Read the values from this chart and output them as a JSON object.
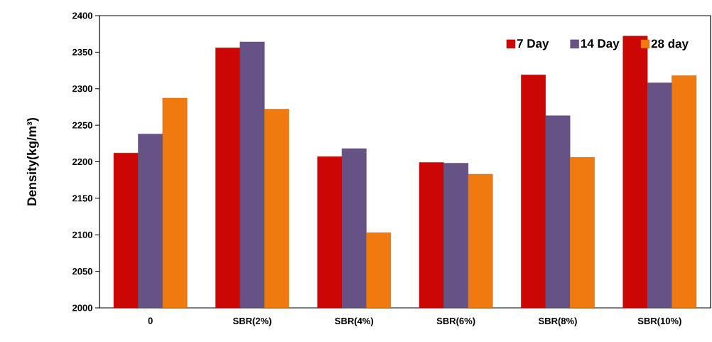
{
  "chart_data": {
    "type": "bar",
    "ylabel": "Density(kg/m³)",
    "categories": [
      "0",
      "SBR(2%)",
      "SBR(4%)",
      "SBR(6%)",
      "SBR(8%)",
      "SBR(10%)"
    ],
    "series": [
      {
        "name": "7 Day",
        "color": "#cc0605",
        "values": [
          2212,
          2356,
          2207,
          2199,
          2319,
          2372
        ]
      },
      {
        "name": "14 Day",
        "color": "#665285",
        "values": [
          2238,
          2364,
          2218,
          2198,
          2263,
          2308
        ]
      },
      {
        "name": "28 day",
        "color": "#f07910",
        "values": [
          2287,
          2272,
          2103,
          2183,
          2206,
          2318
        ]
      }
    ],
    "ylim": [
      2000,
      2400
    ],
    "yticks": [
      2000,
      2050,
      2100,
      2150,
      2200,
      2250,
      2300,
      2350,
      2400
    ],
    "grid": false,
    "legend": "top right"
  }
}
